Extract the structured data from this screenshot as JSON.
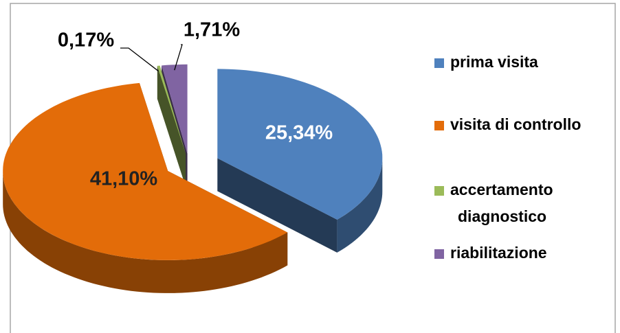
{
  "chart_data": {
    "type": "pie3d",
    "categories": [
      "prima visita",
      "visita di controllo",
      "accertamento diagnostico",
      "riabilitazione"
    ],
    "values": [
      25.34,
      41.1,
      0.17,
      1.71
    ],
    "value_labels": [
      "25,34%",
      "41,10%",
      "0,17%",
      "1,71%"
    ],
    "colors": [
      "#4f81bd",
      "#e36c09",
      "#9bbb59",
      "#8064a2"
    ],
    "legend": "right"
  }
}
